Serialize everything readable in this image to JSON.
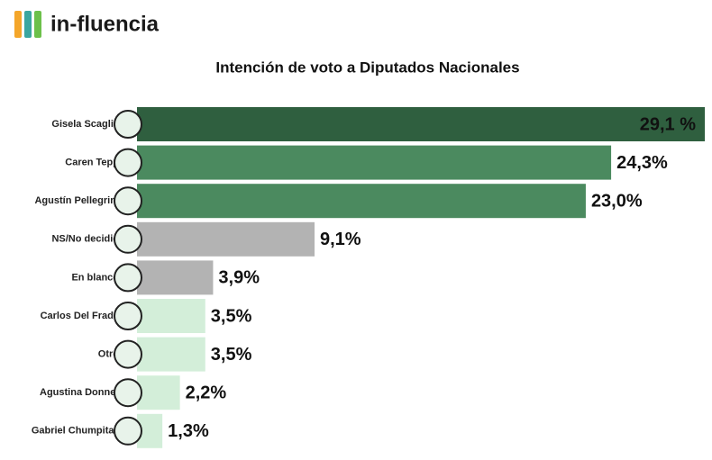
{
  "brand": "in-fluencia",
  "chart_data": {
    "type": "hbar",
    "title": "Intención de voto a Diputados Nacionales",
    "categories": [
      "Gisela Scaglia",
      "Caren Tepp",
      "Agustín Pellegrini",
      "NS/No decidió",
      "En blanco",
      "Carlos Del Frade",
      "Otro",
      "Agustina Donnet",
      "Gabriel Chumpitaz"
    ],
    "values": [
      29.1,
      24.3,
      23.0,
      9.1,
      3.9,
      3.5,
      3.5,
      2.2,
      1.3
    ],
    "value_labels": [
      "29,1 %",
      "24,3%",
      "23,0%",
      "9,1%",
      "3,9%",
      "3,5%",
      "3,5%",
      "2,2%",
      "1,3%"
    ],
    "colors": [
      "#2f5f3f",
      "#4b8a5f",
      "#4b8a5f",
      "#b3b3b3",
      "#b3b3b3",
      "#d3eed9",
      "#d3eed9",
      "#d3eed9",
      "#d3eed9"
    ]
  }
}
